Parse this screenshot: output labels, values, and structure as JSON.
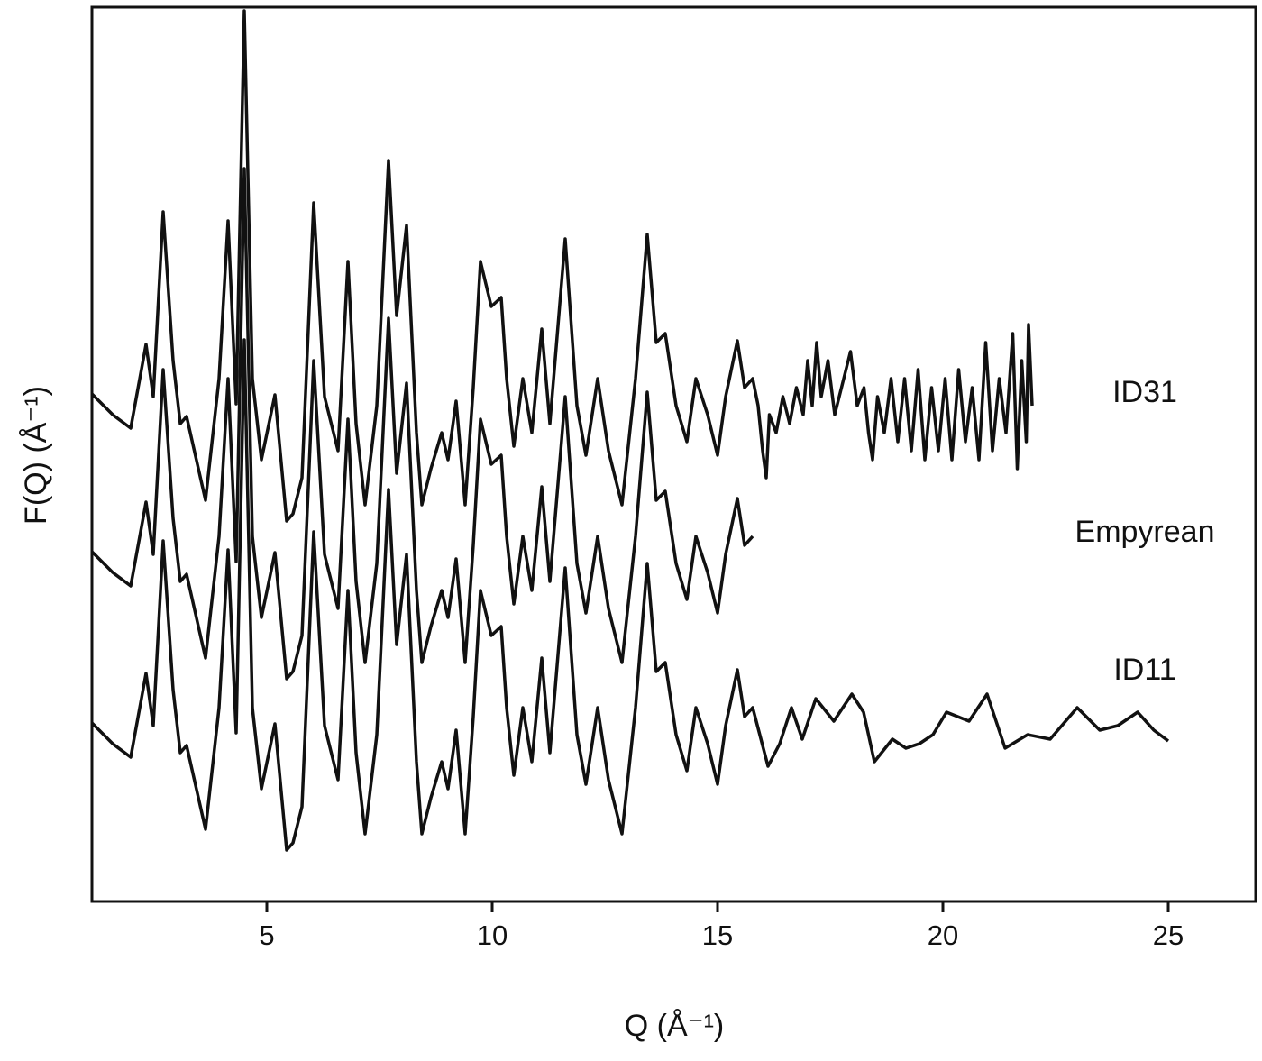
{
  "chart_data": {
    "type": "line",
    "x_label": "Q (Å⁻¹)",
    "y_label": "F(Q) (Å⁻¹)",
    "xlim": [
      1.12,
      26.94
    ],
    "ylim": [
      0,
      99.2
    ],
    "xticks": [
      5,
      10,
      15,
      20,
      25
    ],
    "series": [
      {
        "name": "ID31",
        "color": "#111111",
        "x": [
          1.12,
          1.58,
          1.98,
          2.32,
          2.48,
          2.7,
          2.92,
          3.08,
          3.22,
          3.64,
          3.94,
          4.14,
          4.32,
          4.5,
          4.68,
          4.88,
          5.18,
          5.44,
          5.58,
          5.78,
          6.04,
          6.28,
          6.58,
          6.8,
          6.98,
          7.18,
          7.44,
          7.7,
          7.88,
          8.1,
          8.32,
          8.44,
          8.64,
          8.88,
          9.02,
          9.2,
          9.4,
          9.58,
          9.74,
          9.98,
          10.2,
          10.32,
          10.48,
          10.68,
          10.88,
          11.1,
          11.28,
          11.62,
          11.88,
          12.08,
          12.34,
          12.58,
          12.88,
          13.18,
          13.44,
          13.64,
          13.84,
          14.08,
          14.32,
          14.52,
          14.78,
          15.0,
          15.18,
          15.44,
          15.6,
          15.78,
          15.9,
          16.0,
          16.08,
          16.15,
          16.3,
          16.45,
          16.6,
          16.75,
          16.9,
          17.0,
          17.1,
          17.2,
          17.3,
          17.45,
          17.6,
          17.8,
          17.95,
          18.1,
          18.25,
          18.35,
          18.44,
          18.55,
          18.7,
          18.85,
          19.0,
          19.15,
          19.3,
          19.45,
          19.6,
          19.75,
          19.9,
          20.05,
          20.2,
          20.35,
          20.5,
          20.65,
          20.8,
          20.95,
          21.1,
          21.25,
          21.4,
          21.55,
          21.65,
          21.75,
          21.85,
          21.9,
          21.98
        ],
        "values": [
          56.3,
          54,
          52.5,
          61.8,
          56,
          76.5,
          60,
          53,
          53.8,
          44.5,
          58,
          75.5,
          55.2,
          98.8,
          58,
          49,
          56.2,
          42.2,
          43,
          47,
          77.5,
          56,
          50,
          71,
          53,
          44,
          55,
          82.2,
          65,
          75,
          52,
          44,
          48,
          52,
          49,
          55.5,
          44,
          57,
          71,
          66,
          67,
          58,
          50.5,
          58,
          52,
          63.5,
          53,
          73.5,
          55,
          49.5,
          58,
          50,
          44,
          58,
          74,
          62,
          63,
          55,
          51,
          58,
          54,
          49.5,
          56,
          62.2,
          57,
          58,
          55,
          50,
          47,
          54,
          52,
          56,
          53,
          57,
          54,
          60,
          55,
          62,
          56,
          60,
          54,
          58,
          61,
          55,
          57,
          52,
          49,
          56,
          52,
          58,
          51,
          58,
          50,
          59,
          49,
          57,
          50,
          58,
          49,
          59,
          51,
          57,
          49,
          62,
          50,
          58,
          52,
          63,
          48,
          60,
          51,
          64,
          55
        ]
      },
      {
        "name": "Empyrean",
        "color": "#111111",
        "x": [
          1.12,
          1.58,
          1.98,
          2.32,
          2.48,
          2.7,
          2.92,
          3.08,
          3.22,
          3.64,
          3.94,
          4.14,
          4.32,
          4.5,
          4.68,
          4.88,
          5.18,
          5.44,
          5.58,
          5.78,
          6.04,
          6.28,
          6.58,
          6.8,
          6.98,
          7.18,
          7.44,
          7.7,
          7.88,
          8.1,
          8.32,
          8.44,
          8.64,
          8.88,
          9.02,
          9.2,
          9.4,
          9.58,
          9.74,
          9.98,
          10.2,
          10.32,
          10.48,
          10.68,
          10.88,
          11.1,
          11.28,
          11.62,
          11.88,
          12.08,
          12.34,
          12.58,
          12.88,
          13.18,
          13.44,
          13.64,
          13.84,
          14.08,
          14.32,
          14.52,
          14.78,
          15.0,
          15.18,
          15.44,
          15.6,
          15.78
        ],
        "values": [
          38.8,
          36.5,
          35,
          44.3,
          38.5,
          59,
          42.5,
          35.5,
          36.3,
          27,
          40.5,
          58,
          37.7,
          81.3,
          40.5,
          31.5,
          38.7,
          24.7,
          25.5,
          29.5,
          60,
          38.5,
          32.5,
          53.5,
          35.5,
          26.5,
          37.5,
          64.7,
          47.5,
          57.5,
          34.5,
          26.5,
          30.5,
          34.5,
          31.5,
          38,
          26.5,
          39.5,
          53.5,
          48.5,
          49.5,
          40.5,
          33,
          40.5,
          34.5,
          46,
          35.5,
          56,
          37.5,
          32,
          40.5,
          32.5,
          26.5,
          40.5,
          56.5,
          44.5,
          45.5,
          37.5,
          33.5,
          40.5,
          36.5,
          32,
          38.5,
          44.7,
          39.5,
          40.5
        ]
      },
      {
        "name": "ID11",
        "color": "#111111",
        "x": [
          1.12,
          1.58,
          1.98,
          2.32,
          2.48,
          2.7,
          2.92,
          3.08,
          3.22,
          3.64,
          3.94,
          4.14,
          4.32,
          4.5,
          4.68,
          4.88,
          5.18,
          5.44,
          5.58,
          5.78,
          6.04,
          6.28,
          6.58,
          6.8,
          6.98,
          7.18,
          7.44,
          7.7,
          7.88,
          8.1,
          8.32,
          8.44,
          8.64,
          8.88,
          9.02,
          9.2,
          9.4,
          9.58,
          9.74,
          9.98,
          10.2,
          10.32,
          10.48,
          10.68,
          10.88,
          11.1,
          11.28,
          11.62,
          11.88,
          12.08,
          12.34,
          12.58,
          12.88,
          13.18,
          13.44,
          13.64,
          13.84,
          14.08,
          14.32,
          14.52,
          14.78,
          15.0,
          15.18,
          15.44,
          15.6,
          15.78,
          16.12,
          16.38,
          16.64,
          16.88,
          17.18,
          17.58,
          17.98,
          18.24,
          18.48,
          18.88,
          19.18,
          19.48,
          19.78,
          20.08,
          20.58,
          20.98,
          21.38,
          21.88,
          22.38,
          22.98,
          23.48,
          23.88,
          24.32,
          24.68,
          25.0
        ],
        "values": [
          19.8,
          17.5,
          16,
          25.3,
          19.5,
          40,
          23.5,
          16.5,
          17.3,
          8,
          21.5,
          39,
          18.7,
          62.3,
          21.5,
          12.5,
          19.7,
          5.7,
          6.5,
          10.5,
          41,
          19.5,
          13.5,
          34.5,
          16.5,
          7.5,
          18.5,
          45.7,
          28.5,
          38.5,
          15.5,
          7.5,
          11.5,
          15.5,
          12.5,
          19,
          7.5,
          20.5,
          34.5,
          29.5,
          30.5,
          21.5,
          14,
          21.5,
          15.5,
          27,
          16.5,
          37,
          18.5,
          13,
          21.5,
          13.5,
          7.5,
          21.5,
          37.5,
          25.5,
          26.5,
          18.5,
          14.5,
          21.5,
          17.5,
          13,
          19.5,
          25.7,
          20.5,
          21.5,
          15,
          17.5,
          21.5,
          18,
          22.5,
          20,
          23,
          21,
          15.5,
          18,
          17,
          17.5,
          18.5,
          21,
          20,
          23,
          17,
          18.5,
          18,
          21.5,
          19,
          19.5,
          21,
          19,
          17.8
        ]
      }
    ]
  }
}
